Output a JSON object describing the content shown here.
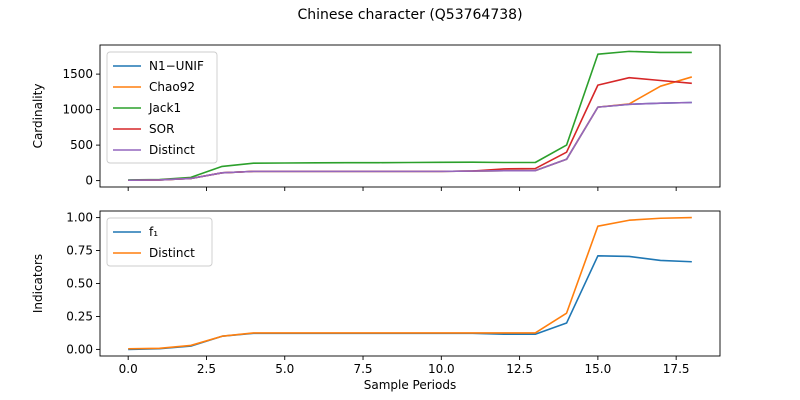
{
  "figure": {
    "title": "Chinese character (Q53764738)"
  },
  "chart_data": [
    {
      "type": "line",
      "ylabel": "Cardinality",
      "xlabel": "",
      "xlim": [
        -0.9,
        18.9
      ],
      "ylim": [
        -90,
        1910
      ],
      "xticks": [
        0.0,
        2.5,
        5.0,
        7.5,
        10.0,
        12.5,
        15.0,
        17.5
      ],
      "xtick_labels": [],
      "yticks": [
        0,
        500,
        1000,
        1500
      ],
      "ytick_labels": [
        "0",
        "500",
        "1000",
        "1500"
      ],
      "legend_position": "upper-left",
      "grid": false,
      "x": [
        0,
        1,
        2,
        3,
        4,
        5,
        6,
        7,
        8,
        9,
        10,
        11,
        12,
        13,
        14,
        15,
        16,
        17,
        18
      ],
      "series": [
        {
          "name": "N1−UNIF",
          "color": "#1f77b4",
          "values": [
            5,
            10,
            30,
            110,
            130,
            130,
            130,
            130,
            130,
            130,
            130,
            135,
            140,
            140,
            300,
            1035,
            1075,
            1090,
            1100
          ]
        },
        {
          "name": "Chao92",
          "color": "#ff7f0e",
          "values": [
            5,
            10,
            30,
            110,
            130,
            130,
            130,
            130,
            130,
            130,
            130,
            135,
            140,
            140,
            300,
            1035,
            1080,
            1330,
            1460
          ]
        },
        {
          "name": "Jack1",
          "color": "#2ca02c",
          "values": [
            10,
            15,
            45,
            200,
            245,
            248,
            250,
            252,
            253,
            255,
            257,
            260,
            255,
            255,
            500,
            1780,
            1820,
            1805,
            1805
          ]
        },
        {
          "name": "SOR",
          "color": "#d62728",
          "values": [
            5,
            10,
            30,
            110,
            130,
            130,
            130,
            130,
            130,
            130,
            130,
            135,
            165,
            170,
            400,
            1345,
            1450,
            1410,
            1370
          ]
        },
        {
          "name": "Distinct",
          "color": "#9467bd",
          "values": [
            5,
            10,
            30,
            110,
            130,
            130,
            130,
            130,
            130,
            130,
            130,
            135,
            140,
            140,
            300,
            1035,
            1075,
            1090,
            1100
          ]
        }
      ]
    },
    {
      "type": "line",
      "ylabel": "Indicators",
      "xlabel": "Sample Periods",
      "xlim": [
        -0.9,
        18.9
      ],
      "ylim": [
        -0.05,
        1.05
      ],
      "xticks": [
        0.0,
        2.5,
        5.0,
        7.5,
        10.0,
        12.5,
        15.0,
        17.5
      ],
      "xtick_labels": [
        "0.0",
        "2.5",
        "5.0",
        "7.5",
        "10.0",
        "12.5",
        "15.0",
        "17.5"
      ],
      "yticks": [
        0.0,
        0.25,
        0.5,
        0.75,
        1.0
      ],
      "ytick_labels": [
        "0.00",
        "0.25",
        "0.50",
        "0.75",
        "1.00"
      ],
      "legend_position": "upper-left",
      "grid": false,
      "x": [
        0,
        1,
        2,
        3,
        4,
        5,
        6,
        7,
        8,
        9,
        10,
        11,
        12,
        13,
        14,
        15,
        16,
        17,
        18
      ],
      "series": [
        {
          "name": "f₁",
          "color": "#1f77b4",
          "values": [
            0.0,
            0.005,
            0.025,
            0.1,
            0.122,
            0.122,
            0.122,
            0.122,
            0.122,
            0.122,
            0.122,
            0.122,
            0.115,
            0.115,
            0.2,
            0.71,
            0.705,
            0.675,
            0.665
          ]
        },
        {
          "name": "Distinct",
          "color": "#ff7f0e",
          "values": [
            0.005,
            0.008,
            0.03,
            0.1,
            0.125,
            0.125,
            0.125,
            0.125,
            0.125,
            0.125,
            0.125,
            0.125,
            0.125,
            0.125,
            0.275,
            0.935,
            0.98,
            0.995,
            1.0
          ]
        }
      ]
    }
  ]
}
